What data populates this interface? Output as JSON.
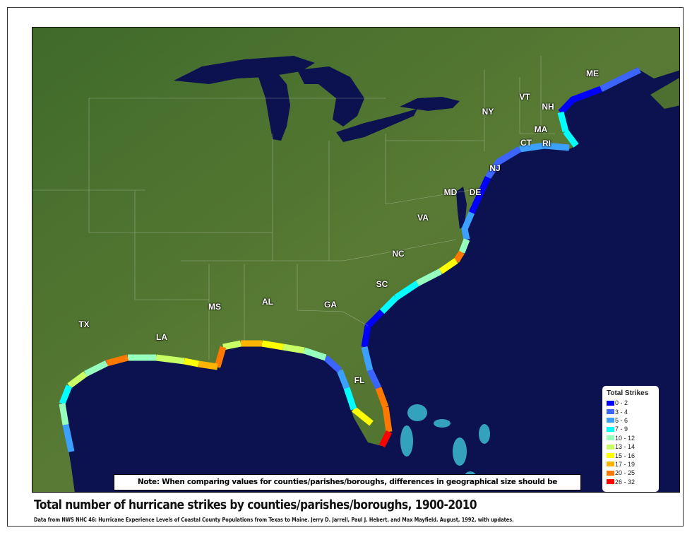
{
  "map": {
    "ocean_color": "#0c1150",
    "land_color": "#4d7030",
    "state_labels": [
      "ME",
      "VT",
      "NH",
      "NY",
      "MA",
      "CT",
      "RI",
      "NJ",
      "MD",
      "DE",
      "VA",
      "NC",
      "SC",
      "GA",
      "AL",
      "MS",
      "LA",
      "TX",
      "FL"
    ]
  },
  "legend": {
    "title": "Total Strikes",
    "items": [
      {
        "label": "0 - 2",
        "color": "#0000ff"
      },
      {
        "label": "3 - 4",
        "color": "#3c64ff"
      },
      {
        "label": "5 - 6",
        "color": "#3ca0ff"
      },
      {
        "label": "7 - 9",
        "color": "#00ffff"
      },
      {
        "label": "10 - 12",
        "color": "#96ffbe"
      },
      {
        "label": "13 - 14",
        "color": "#c8ff64"
      },
      {
        "label": "15 - 16",
        "color": "#ffff00"
      },
      {
        "label": "17 - 19",
        "color": "#ffb400"
      },
      {
        "label": "20 - 25",
        "color": "#ff7800"
      },
      {
        "label": "26 - 32",
        "color": "#ff0000"
      }
    ]
  },
  "note": "Note: When comparing values for counties/parishes/boroughs, differences in geographical size should be considered.",
  "title": "Total number of hurricane strikes by counties/parishes/boroughs, 1900-2010",
  "source": "Data from NWS NHC 46: Hurricane Experience Levels of Coastal County Populations from Texas to Maine. Jerry D. Jarrell, Paul J. Hebert, and Max Mayfield. August, 1992, with updates."
}
